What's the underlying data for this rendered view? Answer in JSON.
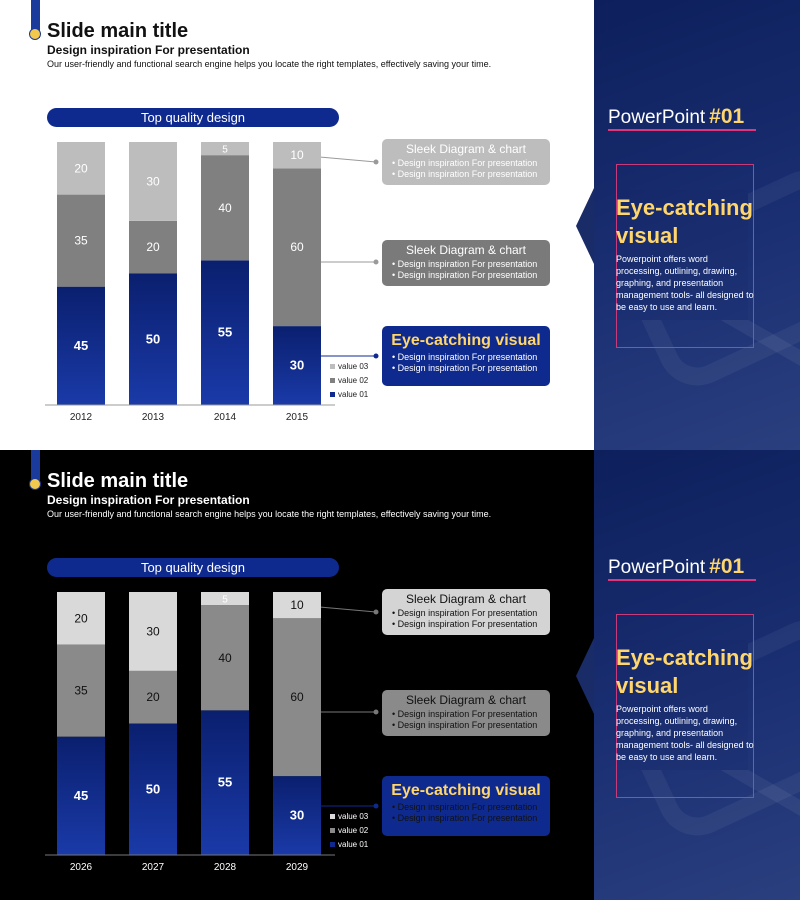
{
  "colors": {
    "accent_blue": "#0f2a8f",
    "accent_yellow": "#ffd66b",
    "accent_pink": "#e0357a",
    "value01": "#0f2a8f",
    "value02_light": "#808080",
    "value03_light": "#bdbdbd",
    "value02_dark": "#8a8a8a",
    "value03_dark": "#d9d9d9"
  },
  "slides": [
    {
      "theme": "light",
      "title": "Slide main title",
      "subtitle": "Design inspiration For presentation",
      "description": "Our user-friendly and functional search engine helps you locate the right templates, effectively saving your time.",
      "pill": "Top quality design",
      "callouts": [
        {
          "title": "Sleek Diagram & chart",
          "bullets": [
            "Design inspiration For presentation",
            "Design inspiration For presentation"
          ]
        },
        {
          "title": "Sleek Diagram & chart",
          "bullets": [
            "Design inspiration For presentation",
            "Design inspiration For presentation"
          ]
        },
        {
          "title": "Eye-catching visual",
          "bullets": [
            "Design inspiration For presentation",
            "Design inspiration For presentation"
          ]
        }
      ],
      "legend": [
        "value 03",
        "value 02",
        "value 01"
      ],
      "panel": {
        "pp_label": "PowerPoint",
        "pp_number": "#01",
        "heading": "Eye-catching visual",
        "body": "Powerpoint offers word processing, outlining, drawing, graphing, and presentation management tools- all designed to be easy to use and learn."
      }
    },
    {
      "theme": "dark",
      "title": "Slide main title",
      "subtitle": "Design inspiration For presentation",
      "description": "Our user-friendly and functional search engine helps you locate the right templates, effectively saving your time.",
      "pill": "Top quality design",
      "callouts": [
        {
          "title": "Sleek Diagram & chart",
          "bullets": [
            "Design inspiration For presentation",
            "Design inspiration For presentation"
          ]
        },
        {
          "title": "Sleek Diagram & chart",
          "bullets": [
            "Design inspiration For presentation",
            "Design inspiration For presentation"
          ]
        },
        {
          "title": "Eye-catching visual",
          "bullets": [
            "Design inspiration For presentation",
            "Design inspiration For presentation"
          ]
        }
      ],
      "legend": [
        "value 03",
        "value 02",
        "value 01"
      ],
      "panel": {
        "pp_label": "PowerPoint",
        "pp_number": "#01",
        "heading": "Eye-catching visual",
        "body": "Powerpoint offers word processing, outlining, drawing, graphing, and presentation management tools- all designed to be easy to use and learn."
      }
    }
  ],
  "chart_data": [
    {
      "type": "bar",
      "stacked": true,
      "title": "Top quality design",
      "categories": [
        "2012",
        "2013",
        "2014",
        "2015"
      ],
      "series": [
        {
          "name": "value 01",
          "values": [
            45,
            50,
            55,
            30
          ]
        },
        {
          "name": "value 02",
          "values": [
            35,
            20,
            40,
            60
          ]
        },
        {
          "name": "value 03",
          "values": [
            20,
            30,
            5,
            10
          ]
        }
      ],
      "ylim": [
        0,
        100
      ],
      "grid": false,
      "legend_position": "bottom-right"
    },
    {
      "type": "bar",
      "stacked": true,
      "title": "Top quality design",
      "categories": [
        "2026",
        "2027",
        "2028",
        "2029"
      ],
      "series": [
        {
          "name": "value 01",
          "values": [
            45,
            50,
            55,
            30
          ]
        },
        {
          "name": "value 02",
          "values": [
            35,
            20,
            40,
            60
          ]
        },
        {
          "name": "value 03",
          "values": [
            20,
            30,
            5,
            10
          ]
        }
      ],
      "ylim": [
        0,
        100
      ],
      "grid": false,
      "legend_position": "bottom-right"
    }
  ]
}
